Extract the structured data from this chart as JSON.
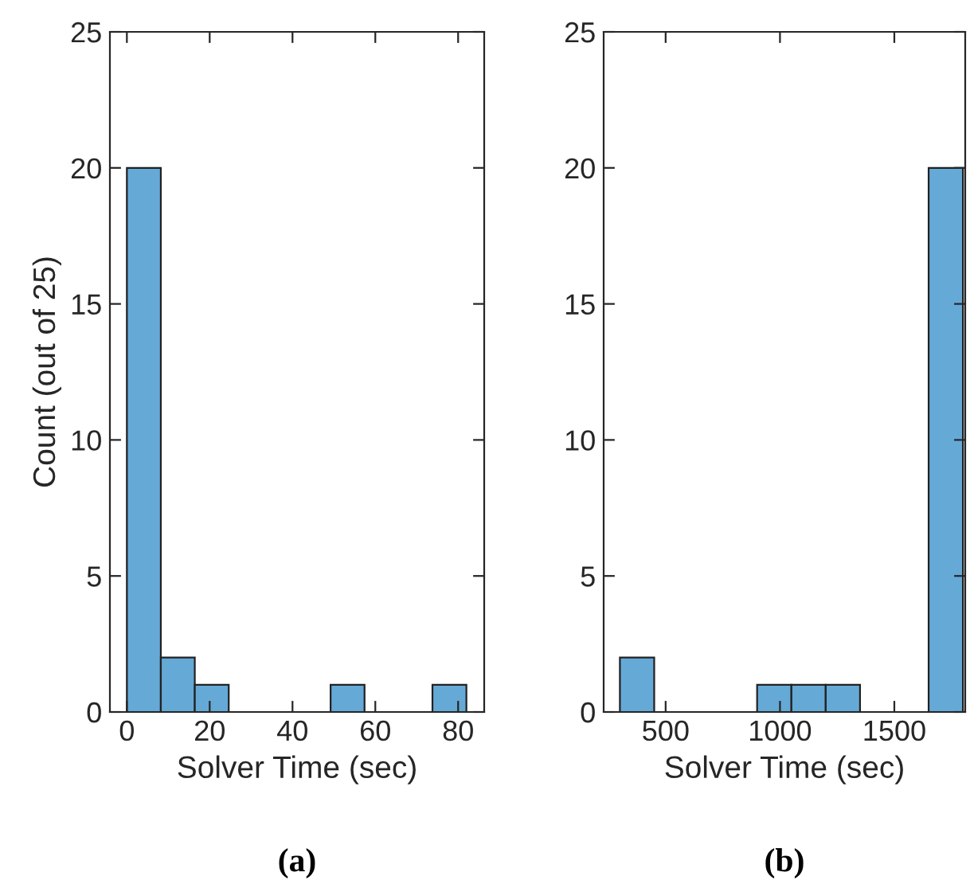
{
  "chart_data": [
    {
      "type": "histogram",
      "xlabel": "Solver Time (sec)",
      "ylabel": "Count (out of 25)",
      "bins": [
        0,
        8.2,
        16.4,
        24.6,
        32.8,
        41,
        49.2,
        57.4,
        65.6,
        73.8,
        82
      ],
      "values": [
        20,
        2,
        1,
        0,
        0,
        0,
        1,
        0,
        0,
        1
      ],
      "color": "#65a9d7",
      "xlim": [
        -4.1,
        86.3
      ],
      "xticks": [
        0,
        20,
        40,
        60,
        80
      ],
      "ylim": [
        0,
        25
      ],
      "yticks": [
        0,
        5,
        10,
        15,
        20,
        25
      ],
      "grid": false,
      "annotations": [
        "(a)"
      ]
    },
    {
      "type": "histogram",
      "xlabel": "Solver Time (sec)",
      "bins": [
        300,
        450,
        600,
        750,
        900,
        1050,
        1200,
        1350,
        1500,
        1650,
        1800
      ],
      "values": [
        2,
        0,
        0,
        0,
        1,
        1,
        1,
        0,
        0,
        20
      ],
      "color": "#65a9d7",
      "xlim": [
        229,
        1810
      ],
      "xticks": [
        500,
        1000,
        1500
      ],
      "ylim": [
        0,
        25
      ],
      "yticks": [
        0,
        5,
        10,
        15,
        20,
        25
      ],
      "grid": false,
      "annotations": [
        "(b)"
      ]
    }
  ]
}
